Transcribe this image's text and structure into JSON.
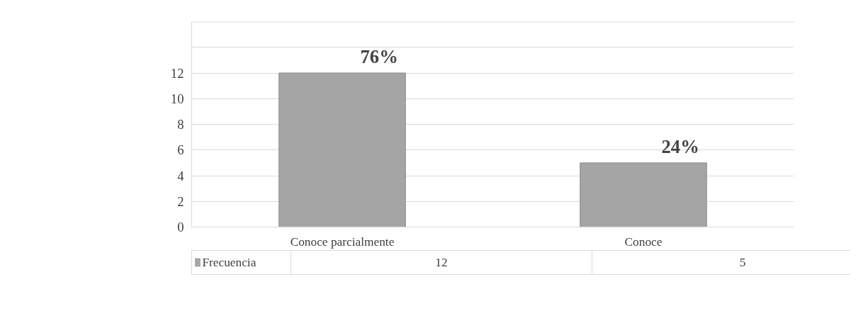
{
  "chart_data": {
    "type": "bar",
    "categories": [
      "Conoce parcialmente",
      "Conoce"
    ],
    "series": [
      {
        "name": "Frecuencia",
        "color": "#a5a5a5",
        "values": [
          12,
          5
        ]
      }
    ],
    "ylim": [
      0,
      16
    ],
    "yticks": [
      0,
      2,
      4,
      6,
      8,
      10,
      12,
      {
        "value": 14,
        "label": null
      },
      {
        "value": 16,
        "label": null
      }
    ],
    "grid": "y",
    "data_labels": true,
    "annotations": [
      {
        "text": "76%",
        "x": "Conoce parcialmente",
        "y": 12
      },
      {
        "text": "24%",
        "x": "Conoce",
        "y": 5
      }
    ]
  }
}
